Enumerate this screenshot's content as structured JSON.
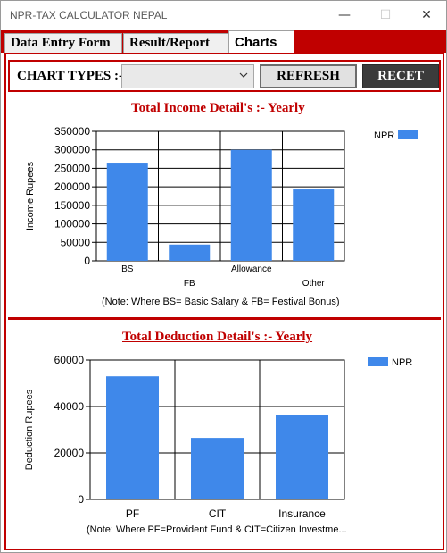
{
  "window": {
    "title": "NPR-TAX CALCULATOR NEPAL",
    "minimize_glyph": "—",
    "maximize_glyph": "☐",
    "close_glyph": "✕"
  },
  "tabs": [
    {
      "label": "Data Entry Form",
      "active": false
    },
    {
      "label": "Result/Report",
      "active": false
    },
    {
      "label": "Charts",
      "active": true
    }
  ],
  "toolbar": {
    "chart_types_label": "CHART TYPES :-",
    "chart_types_value": "",
    "refresh_label": "REFRESH",
    "recet_label": "RECET"
  },
  "colors": {
    "accent": "#c00000",
    "bar": "#3f88ea",
    "dark_button": "#3b3b3b"
  },
  "chart_data": [
    {
      "type": "bar",
      "title": "Total Income Detail's :- Yearly",
      "ylabel": "Income Rupees",
      "xlabel": "",
      "categories": [
        "BS",
        "FB",
        "Allowance",
        "Other"
      ],
      "series": [
        {
          "name": "NPR",
          "values": [
            263000,
            44000,
            300000,
            193000
          ]
        }
      ],
      "ylim": [
        0,
        350000
      ],
      "yticks": [
        0,
        50000,
        100000,
        150000,
        200000,
        250000,
        300000,
        350000
      ],
      "ytick_labels": [
        "0",
        "50000",
        "100000",
        "150000",
        "200000",
        "250000",
        "300000",
        "350000"
      ],
      "grid": true,
      "legend": "top-right",
      "note": "(Note: Where BS= Basic Salary & FB= Festival Bonus)"
    },
    {
      "type": "bar",
      "title": "Total Deduction Detail's :- Yearly",
      "ylabel": "Deduction Rupees",
      "xlabel": "",
      "categories": [
        "PF",
        "CIT",
        "Insurance"
      ],
      "series": [
        {
          "name": "NPR",
          "values": [
            53000,
            26500,
            36500
          ]
        }
      ],
      "ylim": [
        0,
        60000
      ],
      "yticks": [
        0,
        20000,
        40000,
        60000
      ],
      "ytick_labels": [
        "0",
        "20000",
        "40000",
        "60000"
      ],
      "grid": true,
      "legend": "top-right",
      "note": "(Note: Where PF=Provident Fund & CIT=Citizen Investme..."
    }
  ]
}
